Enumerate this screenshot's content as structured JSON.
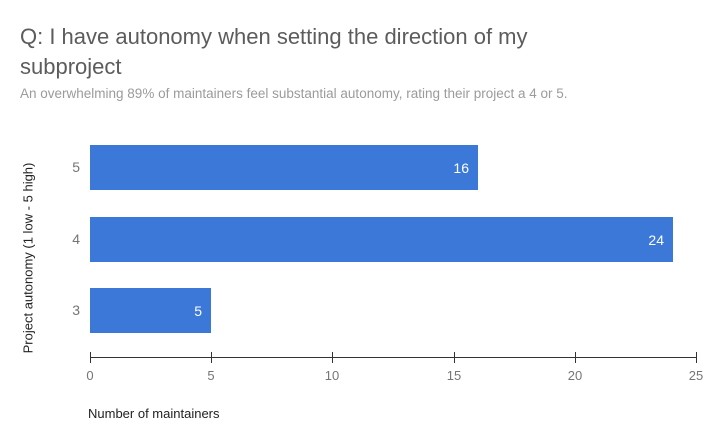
{
  "page": {
    "background_color": "#ffffff"
  },
  "chart_data": {
    "type": "bar",
    "orientation": "horizontal",
    "title": "Q: I have autonomy when setting the direction of my subproject",
    "subtitle": "An overwhelming 89% of maintainers feel substantial autonomy, rating their project a 4 or 5.",
    "xlabel": "Number of maintainers",
    "ylabel": "Project autonomy (1 low - 5 high)",
    "categories": [
      "5",
      "4",
      "3"
    ],
    "values": [
      16,
      24,
      5
    ],
    "rows": [
      {
        "category": "5",
        "value": 16,
        "label": "16"
      },
      {
        "category": "4",
        "value": 24,
        "label": "24"
      },
      {
        "category": "3",
        "value": 5,
        "label": "5"
      }
    ],
    "xlim": [
      0,
      25
    ],
    "xticks": [
      "0",
      "5",
      "10",
      "15",
      "20",
      "25"
    ],
    "grid": false,
    "legend": "none",
    "bar_color": "#3c78d8",
    "value_label_color": "#ffffff",
    "title_color": "#5c5c5c",
    "subtitle_color": "#9b9b9b",
    "axis_label_color": "#757575",
    "axis_title_color": "#222222"
  }
}
